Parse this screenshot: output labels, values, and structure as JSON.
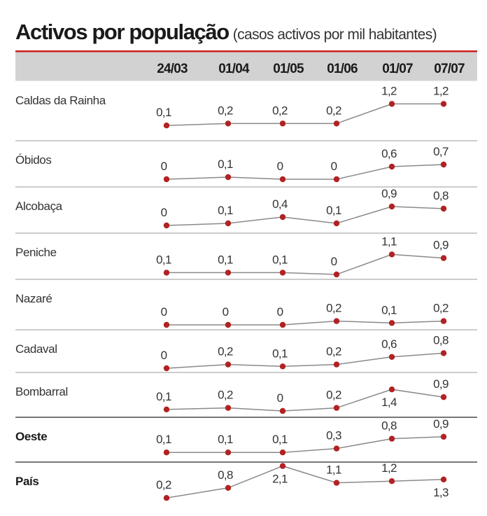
{
  "title": "Activos por população",
  "subtitle": "(casos activos por mil habitantes)",
  "colors": {
    "header_band": "#d2d2d2",
    "accent_line": "#cc1f1f",
    "line": "#8a8a8a",
    "dot": "#b22222",
    "separator": "#9a9a9a"
  },
  "chart_data": {
    "type": "line",
    "title": "Activos por população",
    "subtitle": "(casos activos por mil habitantes)",
    "categories": [
      "24/03",
      "01/04",
      "01/05",
      "01/06",
      "01/07",
      "07/07"
    ],
    "series": [
      {
        "name": "Caldas da Rainha",
        "bold": false,
        "values": [
          0.1,
          0.2,
          0.2,
          0.2,
          1.2,
          1.2
        ],
        "labels": [
          "0,1",
          "0,2",
          "0,2",
          "0,2",
          "1,2",
          "1,2"
        ]
      },
      {
        "name": "Óbidos",
        "bold": false,
        "values": [
          0,
          0.1,
          0,
          0,
          0.6,
          0.7
        ],
        "labels": [
          "0",
          "0,1",
          "0",
          "0",
          "0,6",
          "0,7"
        ]
      },
      {
        "name": "Alcobaça",
        "bold": false,
        "values": [
          0,
          0.1,
          0.4,
          0.1,
          0.9,
          0.8
        ],
        "labels": [
          "0",
          "0,1",
          "0,4",
          "0,1",
          "0,9",
          "0,8"
        ]
      },
      {
        "name": "Peniche",
        "bold": false,
        "values": [
          0.1,
          0.1,
          0.1,
          0,
          1.1,
          0.9
        ],
        "labels": [
          "0,1",
          "0,1",
          "0,1",
          "0",
          "1,1",
          "0,9"
        ]
      },
      {
        "name": "Nazaré",
        "bold": false,
        "values": [
          0,
          0,
          0,
          0.2,
          0.1,
          0.2
        ],
        "labels": [
          "0",
          "0",
          "0",
          "0,2",
          "0,1",
          "0,2"
        ]
      },
      {
        "name": "Cadaval",
        "bold": false,
        "values": [
          0,
          0.2,
          0.1,
          0.2,
          0.6,
          0.8
        ],
        "labels": [
          "0",
          "0,2",
          "0,1",
          "0,2",
          "0,6",
          "0,8"
        ]
      },
      {
        "name": "Bombarral",
        "bold": false,
        "values": [
          0.1,
          0.2,
          0,
          0.2,
          1.4,
          0.9
        ],
        "labels": [
          "0,1",
          "0,2",
          "0",
          "0,2",
          "1,4",
          "0,9"
        ]
      },
      {
        "name": "Oeste",
        "bold": true,
        "values": [
          0.1,
          0.1,
          0.1,
          0.3,
          0.8,
          0.9
        ],
        "labels": [
          "0,1",
          "0,1",
          "0,1",
          "0,3",
          "0,8",
          "0,9"
        ]
      },
      {
        "name": "País",
        "bold": true,
        "values": [
          0.2,
          0.8,
          2.1,
          1.1,
          1.2,
          1.3
        ],
        "labels": [
          "0,2",
          "0,8",
          "2,1",
          "1,1",
          "1,2",
          "1,3"
        ]
      }
    ]
  }
}
